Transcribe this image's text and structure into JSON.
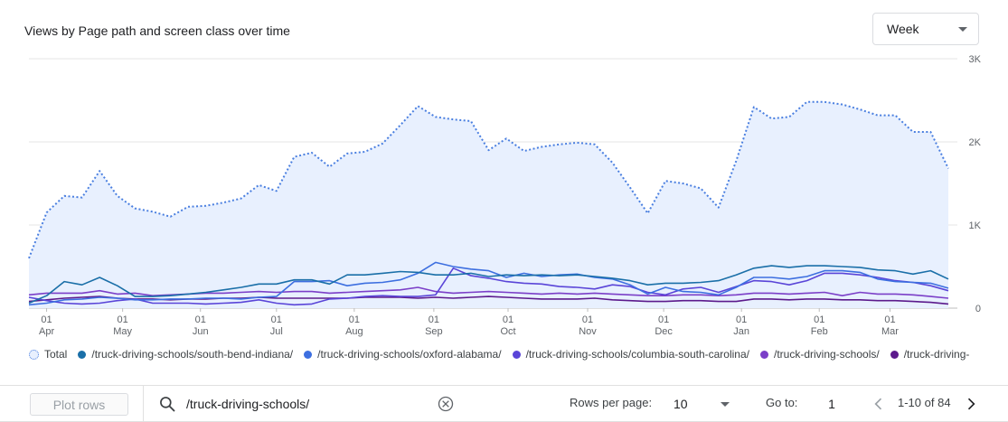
{
  "title": "Views by Page path and screen class over time",
  "period_select": {
    "value": "Week",
    "icon": "chevron-down-icon"
  },
  "legend": [
    {
      "label": "Total",
      "color": "#4a7fe0",
      "style": "dotted"
    },
    {
      "label": "/truck-driving-schools/south-bend-indiana/",
      "color": "#1a6fa8"
    },
    {
      "label": "/truck-driving-schools/oxford-alabama/",
      "color": "#3d6fe0"
    },
    {
      "label": "/truck-driving-schools/columbia-south-carolina/",
      "color": "#5a45d8"
    },
    {
      "label": "/truck-driving-schools/",
      "color": "#7b3fc8"
    },
    {
      "label": "/truck-driving-",
      "color": "#5c1a8c"
    }
  ],
  "table_controls": {
    "plot_rows_label": "Plot rows",
    "search_value": "/truck-driving-schools/",
    "rows_per_page_label": "Rows per page:",
    "rows_per_page_value": "10",
    "goto_label": "Go to:",
    "goto_value": "1",
    "page_range": "1-10 of 84"
  },
  "chart_data": {
    "type": "line",
    "ylim": [
      0,
      3000
    ],
    "y_ticks": [
      "0",
      "1K",
      "2K",
      "3K"
    ],
    "x_ticks": [
      {
        "day": "01",
        "month": "Apr",
        "week": 1
      },
      {
        "day": "01",
        "month": "May",
        "week": 5.3
      },
      {
        "day": "01",
        "month": "Jun",
        "week": 9.7
      },
      {
        "day": "01",
        "month": "Jul",
        "week": 14
      },
      {
        "day": "01",
        "month": "Aug",
        "week": 18.4
      },
      {
        "day": "01",
        "month": "Sep",
        "week": 22.9
      },
      {
        "day": "01",
        "month": "Oct",
        "week": 27.1
      },
      {
        "day": "01",
        "month": "Nov",
        "week": 31.6
      },
      {
        "day": "01",
        "month": "Dec",
        "week": 35.9
      },
      {
        "day": "01",
        "month": "Jan",
        "week": 40.3
      },
      {
        "day": "01",
        "month": "Feb",
        "week": 44.7
      },
      {
        "day": "01",
        "month": "Mar",
        "week": 48.7
      }
    ],
    "series": [
      {
        "name": "Total",
        "color": "#4a7fe0",
        "dotted": true,
        "fill": "#e8f0fe",
        "values": [
          600,
          1150,
          1350,
          1330,
          1650,
          1350,
          1200,
          1160,
          1100,
          1220,
          1230,
          1270,
          1320,
          1480,
          1410,
          1820,
          1870,
          1700,
          1860,
          1880,
          1980,
          2200,
          2430,
          2300,
          2270,
          2250,
          1900,
          2040,
          1890,
          1940,
          1970,
          1990,
          1970,
          1750,
          1450,
          1140,
          1530,
          1500,
          1440,
          1210,
          1770,
          2420,
          2280,
          2300,
          2480,
          2480,
          2450,
          2390,
          2320,
          2320,
          2120,
          2120,
          1680
        ]
      },
      {
        "name": "/truck-driving-schools/south-bend-indiana/",
        "color": "#1a6fa8",
        "values": [
          60,
          150,
          320,
          280,
          370,
          270,
          140,
          140,
          150,
          170,
          190,
          220,
          250,
          290,
          290,
          340,
          340,
          290,
          400,
          400,
          420,
          440,
          430,
          400,
          400,
          420,
          380,
          400,
          390,
          400,
          390,
          400,
          380,
          360,
          330,
          280,
          300,
          300,
          310,
          330,
          400,
          480,
          510,
          490,
          510,
          510,
          500,
          490,
          460,
          450,
          410,
          450,
          350
        ]
      },
      {
        "name": "/truck-driving-schools/oxford-alabama/",
        "color": "#3d6fe0",
        "values": [
          40,
          60,
          100,
          110,
          130,
          120,
          100,
          100,
          110,
          110,
          120,
          120,
          110,
          130,
          140,
          320,
          320,
          330,
          270,
          300,
          310,
          340,
          420,
          550,
          500,
          470,
          450,
          370,
          420,
          380,
          400,
          410,
          370,
          350,
          280,
          170,
          250,
          200,
          190,
          160,
          250,
          370,
          370,
          350,
          380,
          450,
          450,
          430,
          350,
          320,
          310,
          300,
          240
        ]
      },
      {
        "name": "/truck-driving-schools/columbia-south-carolina/",
        "color": "#5a45d8",
        "values": [
          130,
          90,
          60,
          50,
          60,
          90,
          110,
          60,
          60,
          60,
          50,
          60,
          70,
          100,
          60,
          40,
          50,
          110,
          120,
          140,
          150,
          140,
          140,
          160,
          480,
          390,
          360,
          320,
          300,
          290,
          260,
          250,
          230,
          280,
          260,
          190,
          160,
          230,
          250,
          190,
          260,
          330,
          320,
          280,
          330,
          420,
          420,
          400,
          370,
          330,
          310,
          270,
          210
        ]
      },
      {
        "name": "/truck-driving-schools/",
        "color": "#7b3fc8",
        "values": [
          160,
          180,
          180,
          180,
          210,
          170,
          180,
          150,
          160,
          170,
          180,
          180,
          190,
          200,
          190,
          200,
          200,
          180,
          190,
          200,
          210,
          220,
          250,
          200,
          180,
          190,
          200,
          190,
          180,
          170,
          180,
          170,
          180,
          170,
          160,
          150,
          150,
          160,
          160,
          150,
          160,
          180,
          180,
          170,
          180,
          190,
          150,
          190,
          170,
          170,
          160,
          140,
          120
        ]
      },
      {
        "name": "/truck-driving-",
        "color": "#5c1a8c",
        "values": [
          80,
          100,
          120,
          130,
          140,
          120,
          110,
          110,
          100,
          110,
          110,
          120,
          120,
          130,
          120,
          120,
          120,
          120,
          120,
          130,
          130,
          130,
          120,
          130,
          120,
          130,
          140,
          130,
          120,
          110,
          110,
          110,
          120,
          100,
          90,
          80,
          80,
          90,
          90,
          80,
          80,
          110,
          110,
          100,
          110,
          110,
          100,
          100,
          90,
          90,
          80,
          70,
          50
        ]
      }
    ]
  }
}
